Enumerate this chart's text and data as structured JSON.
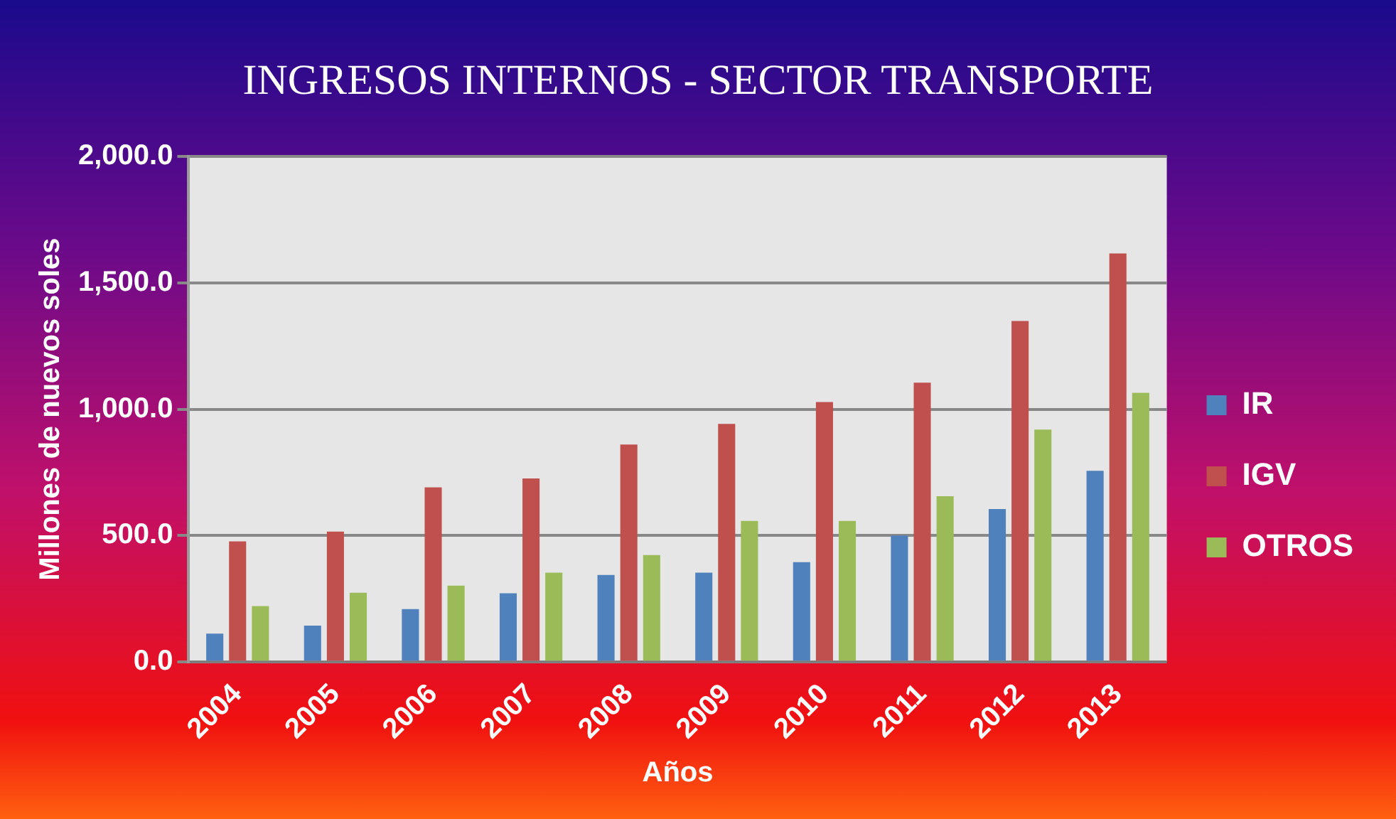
{
  "chart_data": {
    "type": "bar",
    "title": "INGRESOS INTERNOS - SECTOR TRANSPORTE",
    "xlabel": "Años",
    "ylabel": "Millones de nuevos soles",
    "categories": [
      "2004",
      "2005",
      "2006",
      "2007",
      "2008",
      "2009",
      "2010",
      "2011",
      "2012",
      "2013"
    ],
    "series": [
      {
        "name": "IR",
        "color": "#4f81bd",
        "values": [
          112,
          144,
          209,
          272,
          344,
          353,
          395,
          500,
          605,
          756
        ]
      },
      {
        "name": "IGV",
        "color": "#c0504d",
        "values": [
          477,
          516,
          691,
          726,
          860,
          942,
          1028,
          1105,
          1349,
          1616
        ]
      },
      {
        "name": "OTROS",
        "color": "#9bbb59",
        "values": [
          221,
          274,
          302,
          353,
          423,
          558,
          558,
          656,
          919,
          1065
        ]
      }
    ],
    "ylim": [
      0,
      2000
    ],
    "yticks": [
      {
        "value": 0,
        "label": "0.0"
      },
      {
        "value": 500,
        "label": "500.0"
      },
      {
        "value": 1000,
        "label": "1,000.0"
      },
      {
        "value": 1500,
        "label": "1,500.0"
      },
      {
        "value": 2000,
        "label": "2,000.0"
      }
    ],
    "grid": "y",
    "legend": "right"
  }
}
